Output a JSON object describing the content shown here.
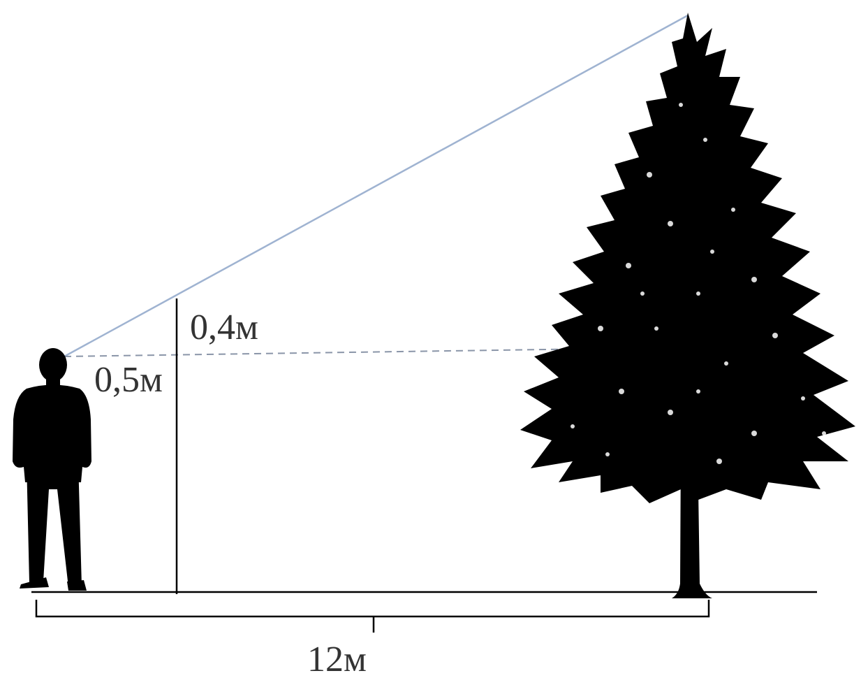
{
  "labels": {
    "stick_top_segment": "0,4м",
    "eye_to_stick_offset": "0,5м",
    "ground_distance": "12м"
  },
  "colors": {
    "sight_line": "#9fb3d1",
    "silhouette": "#000000",
    "line": "#000000",
    "dashed": "#8a95a8",
    "text": "#333333"
  },
  "figures": {
    "person": "person-silhouette",
    "tree": "spruce-tree-silhouette"
  }
}
